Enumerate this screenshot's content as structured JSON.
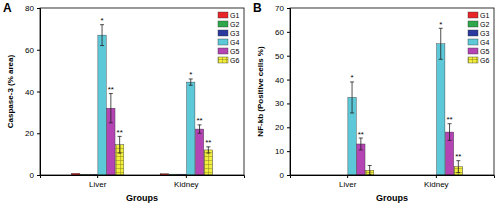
{
  "chart_data": [
    {
      "type": "bar",
      "title": "A",
      "x_label": "Groups",
      "y_label": "Caspase-3 (% area)",
      "categories": [
        "Liver",
        "Kidney"
      ],
      "ylim": [
        0,
        80
      ],
      "yticks": [
        0,
        20,
        40,
        60,
        80
      ],
      "legend": "top-right",
      "series": [
        {
          "name": "G1",
          "color": "#e8262a",
          "values": [
            0.8,
            0.6
          ],
          "errors": [
            null,
            null
          ],
          "significance": [
            null,
            null
          ]
        },
        {
          "name": "G2",
          "color": "#2ea84a",
          "values": [
            0.3,
            0.4
          ],
          "errors": [
            null,
            null
          ],
          "significance": [
            null,
            null
          ]
        },
        {
          "name": "G3",
          "color": "#2b3a9e",
          "values": [
            0.3,
            0.4
          ],
          "errors": [
            null,
            null
          ],
          "significance": [
            null,
            null
          ]
        },
        {
          "name": "G4",
          "color": "#5cc8d8",
          "values": [
            67,
            44.5
          ],
          "errors": [
            5,
            1.5
          ],
          "significance": [
            "*",
            "*"
          ]
        },
        {
          "name": "G5",
          "color": "#b444b4",
          "values": [
            32,
            22
          ],
          "errors": [
            7,
            2
          ],
          "significance": [
            "**",
            "**"
          ]
        },
        {
          "name": "G6",
          "color": "#f2ee3c",
          "values": [
            14.5,
            12
          ],
          "errors": [
            4,
            1.5
          ],
          "significance": [
            "**",
            "**"
          ]
        }
      ]
    },
    {
      "type": "bar",
      "title": "B",
      "x_label": "Groups",
      "y_label": "NF-kb (Positive cells %)",
      "categories": [
        "Liver",
        "Kidney"
      ],
      "ylim": [
        0,
        70
      ],
      "yticks": [
        0,
        10,
        20,
        30,
        40,
        50,
        60,
        70
      ],
      "legend": "top-right",
      "series": [
        {
          "name": "G1",
          "color": "#e8262a",
          "values": [
            0,
            0
          ],
          "errors": [
            null,
            null
          ],
          "significance": [
            null,
            null
          ]
        },
        {
          "name": "G2",
          "color": "#2ea84a",
          "values": [
            0,
            0
          ],
          "errors": [
            null,
            null
          ],
          "significance": [
            null,
            null
          ]
        },
        {
          "name": "G3",
          "color": "#2b3a9e",
          "values": [
            0,
            0
          ],
          "errors": [
            null,
            null
          ],
          "significance": [
            null,
            null
          ]
        },
        {
          "name": "G4",
          "color": "#5cc8d8",
          "values": [
            32.5,
            55
          ],
          "errors": [
            6.5,
            6.5
          ],
          "significance": [
            "*",
            "*"
          ]
        },
        {
          "name": "G5",
          "color": "#b444b4",
          "values": [
            13,
            18
          ],
          "errors": [
            2.5,
            3.5
          ],
          "significance": [
            "**",
            "**"
          ]
        },
        {
          "name": "G6",
          "color": "#f2ee3c",
          "values": [
            2,
            3.5
          ],
          "errors": [
            2,
            2.5
          ],
          "significance": [
            null,
            "**"
          ]
        }
      ]
    }
  ]
}
